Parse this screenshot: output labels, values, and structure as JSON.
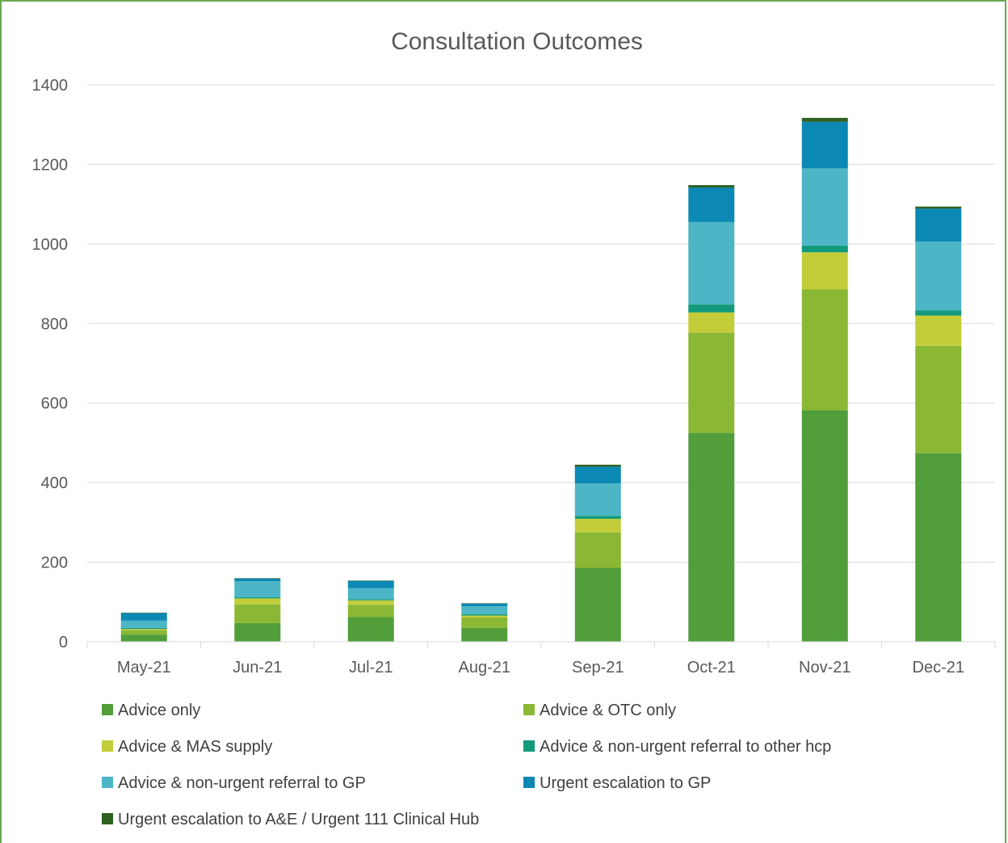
{
  "chart_data": {
    "type": "bar",
    "stacked": true,
    "title": "Consultation Outcomes",
    "xlabel": "",
    "ylabel": "",
    "ylim": [
      0,
      1400
    ],
    "yticks": [
      0,
      200,
      400,
      600,
      800,
      1000,
      1200,
      1400
    ],
    "grid": true,
    "legend_position": "bottom",
    "categories": [
      "May-21",
      "Jun-21",
      "Jul-21",
      "Aug-21",
      "Sep-21",
      "Oct-21",
      "Nov-21",
      "Dec-21"
    ],
    "series": [
      {
        "name": "Advice only",
        "color": "#519e3a",
        "values": [
          18,
          47,
          62,
          35,
          186,
          525,
          582,
          474
        ]
      },
      {
        "name": "Advice & OTC only",
        "color": "#8bb834",
        "values": [
          11,
          47,
          31,
          26,
          89,
          252,
          304,
          270
        ]
      },
      {
        "name": "Advice & MAS supply",
        "color": "#c3cd3a",
        "values": [
          3,
          15,
          11,
          5,
          34,
          51,
          93,
          76
        ]
      },
      {
        "name": "Advice & non-urgent referral to other hcp",
        "color": "#139a7a",
        "values": [
          3,
          3,
          3,
          3,
          7,
          20,
          17,
          13
        ]
      },
      {
        "name": "Advice & non-urgent referral to GP",
        "color": "#4cb6c6",
        "values": [
          18,
          40,
          28,
          20,
          82,
          207,
          194,
          173
        ]
      },
      {
        "name": "Urgent escalation to GP",
        "color": "#0c88b5",
        "values": [
          19,
          7,
          18,
          7,
          42,
          87,
          117,
          83
        ]
      },
      {
        "name": "Urgent escalation to A&E / Urgent 111 Clinical Hub",
        "color": "#2f6121",
        "values": [
          1,
          1,
          1,
          1,
          5,
          6,
          10,
          5
        ]
      }
    ]
  }
}
